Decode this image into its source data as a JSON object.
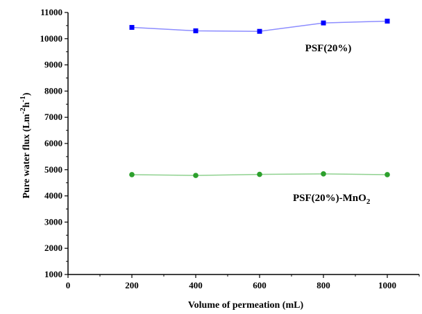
{
  "chart_data": {
    "type": "line",
    "xlabel": "Volume of permeation (mL)",
    "ylabel_main": "Pure water flux (Lm",
    "ylabel_sup1": "-2",
    "ylabel_mid": "h",
    "ylabel_sup2": "-1",
    "ylabel_close": ")",
    "xlim": [
      0,
      1100
    ],
    "ylim": [
      1000,
      11000
    ],
    "x_ticks": [
      0,
      200,
      400,
      600,
      800,
      1000
    ],
    "y_ticks": [
      1000,
      2000,
      3000,
      4000,
      5000,
      6000,
      7000,
      8000,
      9000,
      10000,
      11000
    ],
    "x_tick_labels": [
      "0",
      "200",
      "400",
      "600",
      "800",
      "1000"
    ],
    "y_tick_labels": [
      "1000",
      "2000",
      "3000",
      "4000",
      "5000",
      "6000",
      "7000",
      "8000",
      "9000",
      "10000",
      "11000"
    ],
    "x": [
      200,
      400,
      600,
      800,
      1000
    ],
    "grid": false,
    "series": [
      {
        "name": "PSF(20%)",
        "label_main": "PSF(20%)",
        "values": [
          10430,
          10300,
          10280,
          10600,
          10670
        ],
        "marker": "square",
        "marker_color": "#0000ff",
        "line_color": "#8c8cff"
      },
      {
        "name": "PSF(20%)-MnO2",
        "label_main": "PSF(20%)-MnO",
        "label_sub": "2",
        "values": [
          4810,
          4780,
          4820,
          4840,
          4810
        ],
        "marker": "circle",
        "marker_color": "#2ca02c",
        "line_color": "#8fd18f"
      }
    ]
  }
}
